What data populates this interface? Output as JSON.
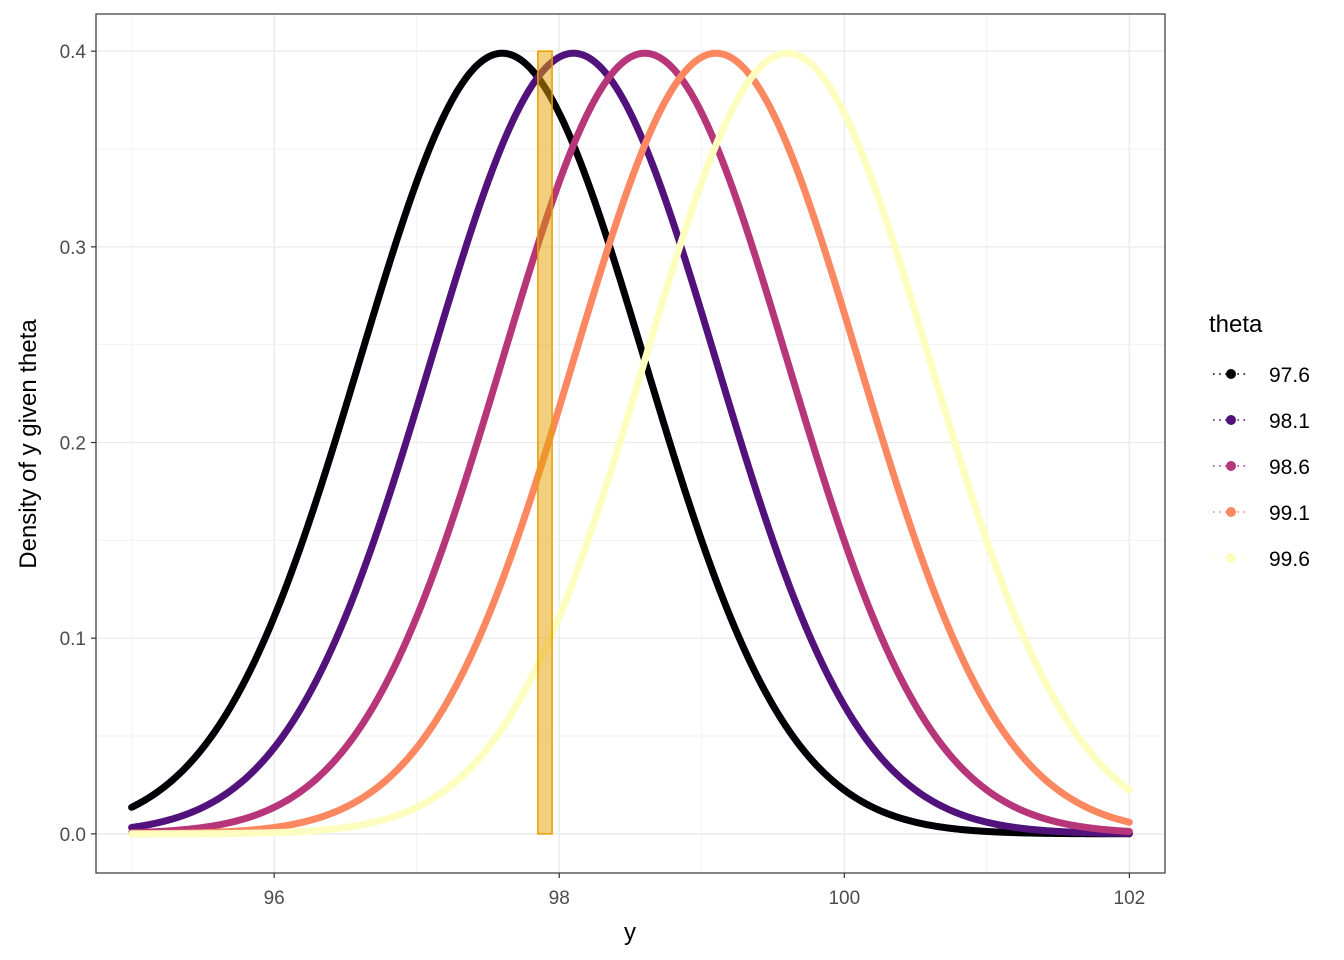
{
  "chart_data": {
    "type": "line",
    "title": "",
    "xlabel": "y",
    "ylabel": "Density of y given theta",
    "xlim": [
      94.75,
      102.25
    ],
    "ylim": [
      -0.02,
      0.419
    ],
    "x_ticks": [
      96,
      98,
      100,
      102
    ],
    "x_tick_labels": [
      "96",
      "98",
      "100",
      "102"
    ],
    "y_ticks": [
      0.0,
      0.1,
      0.2,
      0.3,
      0.4
    ],
    "y_tick_labels": [
      "0.0",
      "0.1",
      "0.2",
      "0.3",
      "0.4"
    ],
    "grid": true,
    "x_range": [
      95,
      102
    ],
    "distribution": "normal density, sd = 1",
    "legend": {
      "title": "theta",
      "placement": "right"
    },
    "series": [
      {
        "name": "97.6",
        "mean": 97.6,
        "sd": 1,
        "color": "#000004"
      },
      {
        "name": "98.1",
        "mean": 98.1,
        "sd": 1,
        "color": "#51127C"
      },
      {
        "name": "98.6",
        "mean": 98.6,
        "sd": 1,
        "color": "#B63679"
      },
      {
        "name": "99.1",
        "mean": 99.1,
        "sd": 1,
        "color": "#FB8861"
      },
      {
        "name": "99.6",
        "mean": 99.6,
        "sd": 1,
        "color": "#FCFDBF"
      }
    ],
    "highlight_rect": {
      "xmin": 97.85,
      "xmax": 97.95,
      "ymin": 0,
      "ymax": 0.4,
      "fill": "#E69F00",
      "alpha": 0.5,
      "stroke": "#E69F00"
    }
  }
}
